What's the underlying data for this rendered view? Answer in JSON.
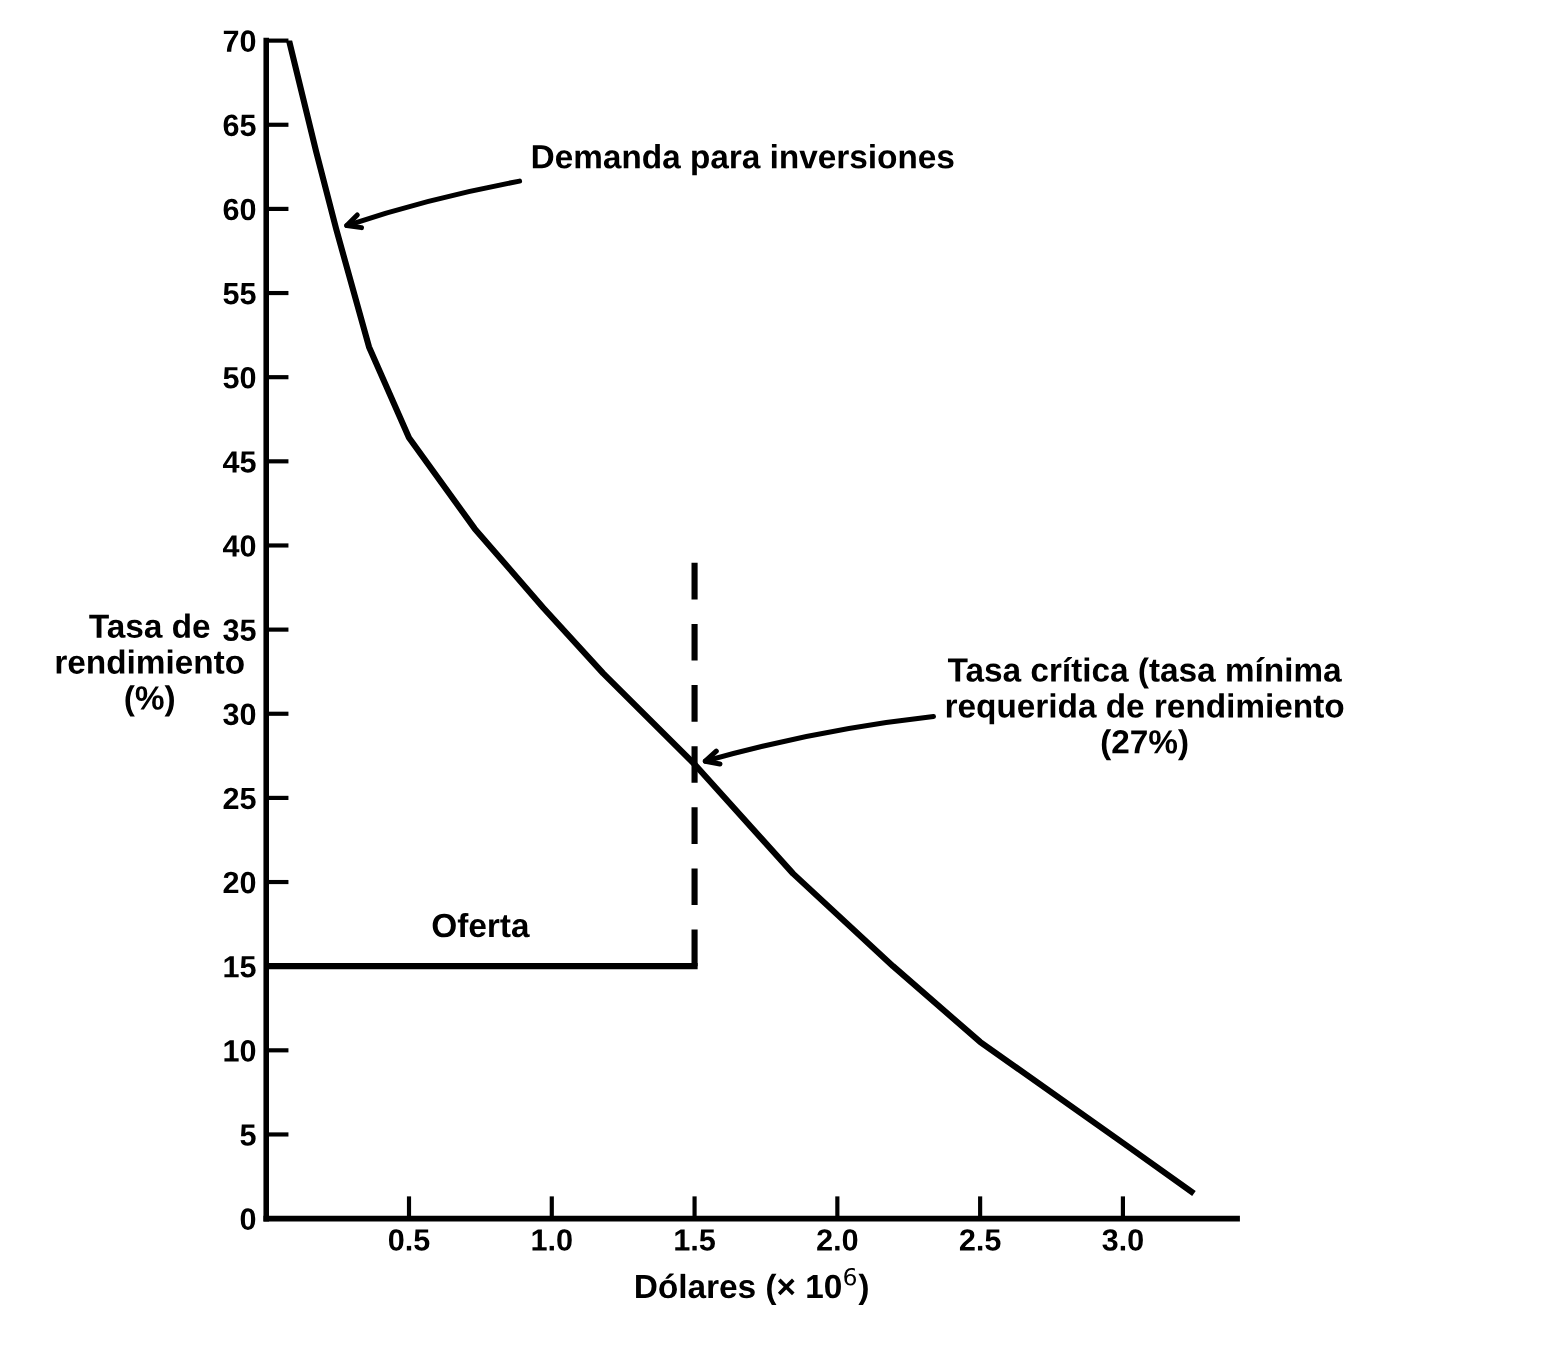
{
  "chart_data": {
    "type": "line",
    "xlabel": "Dólares (× 10$^{6}$)",
    "ylabel": "Tasa de\nrendimiento\n(%)",
    "series": [
      {
        "x": [
          0.08,
          0.175,
          0.245,
          0.36,
          0.5,
          0.73,
          0.97,
          1.18,
          1.5,
          1.845,
          2.195,
          2.5,
          3.0,
          3.24
        ],
        "values": [
          70,
          63.4,
          58.8,
          51.8,
          46.4,
          41,
          36.3,
          32.4,
          27,
          20.5,
          15,
          10.5,
          4.5,
          1.6
        ],
        "color": "#000000",
        "line_style": "solid"
      },
      {
        "x": [
          0,
          1.5
        ],
        "values": [
          15,
          15
        ],
        "color": "#000000",
        "line_style": "solid"
      },
      {
        "x": [
          1.5,
          1.5
        ],
        "values": [
          15,
          39
        ],
        "color": "#000000",
        "line_style": "dashed"
      }
    ],
    "annotations": [
      {
        "text": "Demanda para inversiones",
        "x": 0.245,
        "y": 58.8
      },
      {
        "text": "Tasa crítica (tasa mínima\nrequerida de rendimiento\n(27%)",
        "x": 1.5,
        "y": 27
      },
      {
        "text": "Oferta",
        "x": 0.75,
        "y": 15
      }
    ],
    "xlim": [
      0,
      3.4
    ],
    "ylim": [
      0,
      70
    ],
    "xticks": [
      {
        "value": 0.5,
        "label": "0.5"
      },
      {
        "value": 1.0,
        "label": "1.0"
      },
      {
        "value": 1.5,
        "label": "1.5"
      },
      {
        "value": 2.0,
        "label": "2.0"
      },
      {
        "value": 2.5,
        "label": "2.5"
      },
      {
        "value": 3.0,
        "label": "3.0"
      }
    ],
    "yticks": [
      0,
      5,
      10,
      15,
      20,
      25,
      30,
      35,
      40,
      45,
      50,
      55,
      60,
      65,
      70
    ],
    "grid": false,
    "marker": "none"
  }
}
